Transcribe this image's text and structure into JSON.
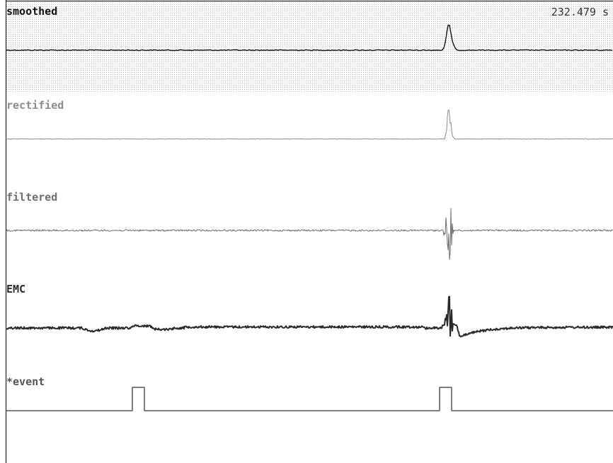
{
  "time_readout": {
    "value": "232.479",
    "unit": "s"
  },
  "channels": [
    {
      "label": "smoothed",
      "color": "#111111"
    },
    {
      "label": "rectified",
      "color": "#8c8c8c"
    },
    {
      "label": "filtered",
      "color": "#6e6e6e"
    },
    {
      "label": "EMC",
      "color": "#2a2a2a"
    },
    {
      "label": "*event",
      "color": "#555555"
    }
  ],
  "colors": {
    "background": "#ffffff",
    "grid_dots": "#b8b8b8",
    "frame": "#000000"
  }
}
